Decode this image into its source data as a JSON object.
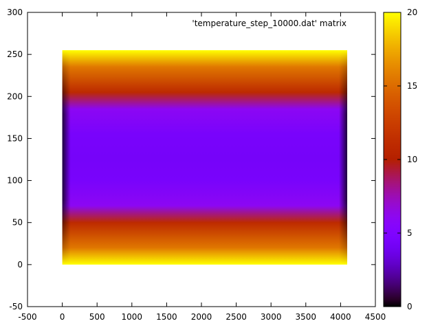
{
  "chart_data": {
    "type": "heatmap",
    "title": "",
    "legend": "'temperature_step_10000.dat' matrix",
    "legend_position": "top-right",
    "xlabel": "",
    "ylabel": "",
    "xlim": [
      -500,
      4500
    ],
    "ylim": [
      -50,
      300
    ],
    "x_ticks": [
      -500,
      0,
      500,
      1000,
      1500,
      2000,
      2500,
      3000,
      3500,
      4000,
      4500
    ],
    "y_ticks": [
      -50,
      0,
      50,
      100,
      150,
      200,
      250,
      300
    ],
    "grid": false,
    "matrix_extent": {
      "x": [
        0,
        4095
      ],
      "y": [
        0,
        255
      ]
    },
    "colorbar": {
      "range": [
        0,
        20
      ],
      "ticks": [
        0,
        5,
        10,
        15,
        20
      ],
      "palette": "gnuplot-default (black-blue-magenta-red-orange-yellow)"
    },
    "field_profile": {
      "description_values_across_y": [
        {
          "y": 0,
          "value": 20
        },
        {
          "y": 20,
          "value": 15.5
        },
        {
          "y": 50,
          "value": 11
        },
        {
          "y": 70,
          "value": 6
        },
        {
          "y": 100,
          "value": 4.5
        },
        {
          "y": 127,
          "value": 4.3
        },
        {
          "y": 155,
          "value": 4.5
        },
        {
          "y": 185,
          "value": 6
        },
        {
          "y": 205,
          "value": 11
        },
        {
          "y": 235,
          "value": 15.5
        },
        {
          "y": 255,
          "value": 20
        }
      ],
      "edge_columns_x": [
        0,
        4095
      ],
      "edge_center_value": 0.5
    }
  }
}
